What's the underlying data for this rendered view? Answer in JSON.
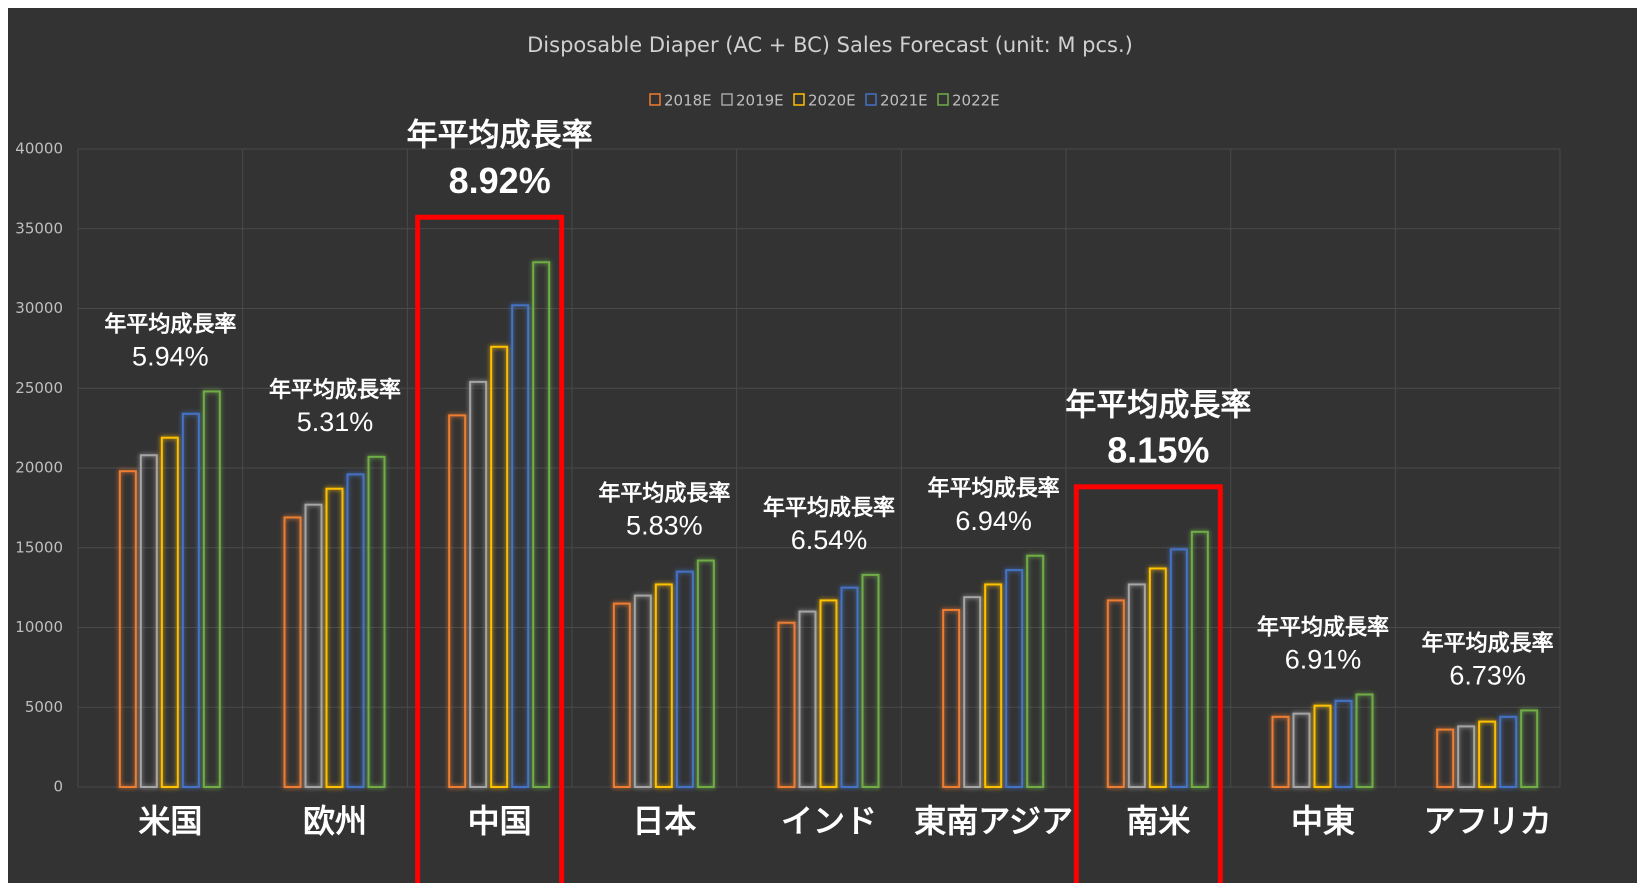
{
  "chart_data": {
    "type": "bar",
    "title": "Disposable Diaper (AC + BC) Sales Forecast (unit: M pcs.)",
    "categories": [
      "米国",
      "欧州",
      "中国",
      "日本",
      "インド",
      "東南アジア",
      "南米",
      "中東",
      "アフリカ"
    ],
    "series": [
      {
        "name": "2018E",
        "color": "#ed7d31",
        "values": [
          19800,
          16900,
          23300,
          11500,
          10300,
          11100,
          11700,
          4400,
          3600
        ]
      },
      {
        "name": "2019E",
        "color": "#a5a5a5",
        "values": [
          20800,
          17700,
          25400,
          12000,
          11000,
          11900,
          12700,
          4600,
          3800
        ]
      },
      {
        "name": "2020E",
        "color": "#ffc000",
        "values": [
          21900,
          18700,
          27600,
          12700,
          11700,
          12700,
          13700,
          5100,
          4100
        ]
      },
      {
        "name": "2021E",
        "color": "#4472c4",
        "values": [
          23400,
          19600,
          30200,
          13500,
          12500,
          13600,
          14900,
          5400,
          4400
        ]
      },
      {
        "name": "2022E",
        "color": "#70ad47",
        "values": [
          24800,
          20700,
          32900,
          14200,
          13300,
          14500,
          16000,
          5800,
          4800
        ]
      }
    ],
    "annotations": [
      {
        "label": "年平均成長率",
        "value": "5.94%",
        "highlight": false
      },
      {
        "label": "年平均成長率",
        "value": "5.31%",
        "highlight": false
      },
      {
        "label": "年平均成長率",
        "value": "8.92%",
        "highlight": true
      },
      {
        "label": "年平均成長率",
        "value": "5.83%",
        "highlight": false
      },
      {
        "label": "年平均成長率",
        "value": "6.54%",
        "highlight": false
      },
      {
        "label": "年平均成長率",
        "value": "6.94%",
        "highlight": false
      },
      {
        "label": "年平均成長率",
        "value": "8.15%",
        "highlight": true
      },
      {
        "label": "年平均成長率",
        "value": "6.91%",
        "highlight": false
      },
      {
        "label": "年平均成長率",
        "value": "6.73%",
        "highlight": false
      }
    ],
    "ylim": [
      0,
      40000
    ],
    "yticks": [
      0,
      5000,
      10000,
      15000,
      20000,
      25000,
      30000,
      35000,
      40000
    ],
    "grid": true,
    "legend": "top"
  }
}
